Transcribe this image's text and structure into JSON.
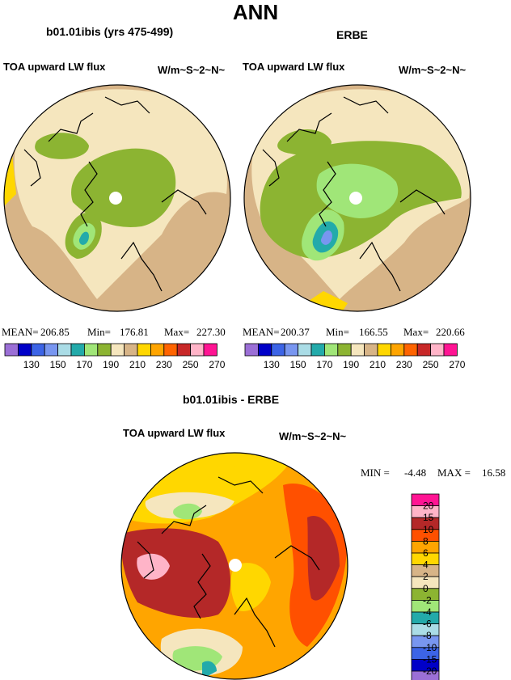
{
  "title": "ANN",
  "panels": [
    {
      "heading": "b01.01ibis (yrs 475-499)",
      "variable": "TOA upward LW flux",
      "units": "W/m~S~2~N~",
      "stats": {
        "mean_label": "MEAN=",
        "mean": "206.85",
        "min_label": "Min=",
        "min": "176.81",
        "max_label": "Max=",
        "max": "227.30"
      },
      "colorbar_labels": [
        "130",
        "150",
        "170",
        "190",
        "210",
        "230",
        "250",
        "270"
      ]
    },
    {
      "heading": "ERBE",
      "variable": "TOA upward LW flux",
      "units": "W/m~S~2~N~",
      "stats": {
        "mean_label": "MEAN=",
        "mean": "200.37",
        "min_label": "Min=",
        "min": "166.55",
        "max_label": "Max=",
        "max": "220.66"
      },
      "colorbar_labels": [
        "130",
        "150",
        "170",
        "190",
        "210",
        "230",
        "250",
        "270"
      ]
    }
  ],
  "difference": {
    "heading": "b01.01ibis - ERBE",
    "variable": "TOA upward LW flux",
    "units": "W/m~S~2~N~",
    "stats": {
      "min_label": "MIN =",
      "min": "-4.48",
      "max_label": "MAX =",
      "max": "16.58"
    },
    "colorbar_labels": [
      "20",
      "15",
      "10",
      "8",
      "6",
      "4",
      "2",
      "0",
      "-2",
      "-4",
      "-6",
      "-8",
      "-10",
      "-15",
      "-20"
    ]
  },
  "colors": {
    "abs_scale": [
      "#9b6fd6",
      "#0000c8",
      "#3c64e6",
      "#7896f0",
      "#aadce6",
      "#23aaaa",
      "#a0e678",
      "#8cb432",
      "#f5e6be",
      "#d7b487",
      "#ffd700",
      "#ffa500",
      "#ff6400",
      "#c82828",
      "#ffb4c8",
      "#ff1493"
    ],
    "diff_scale": [
      "#ff1493",
      "#ffb4c8",
      "#b42828",
      "#ff5000",
      "#ffa500",
      "#ffd700",
      "#d7b487",
      "#f5e6be",
      "#8cb432",
      "#a0e678",
      "#23aaaa",
      "#aadce6",
      "#7896f0",
      "#3c64e6",
      "#0000c8",
      "#9b6fd6"
    ]
  }
}
